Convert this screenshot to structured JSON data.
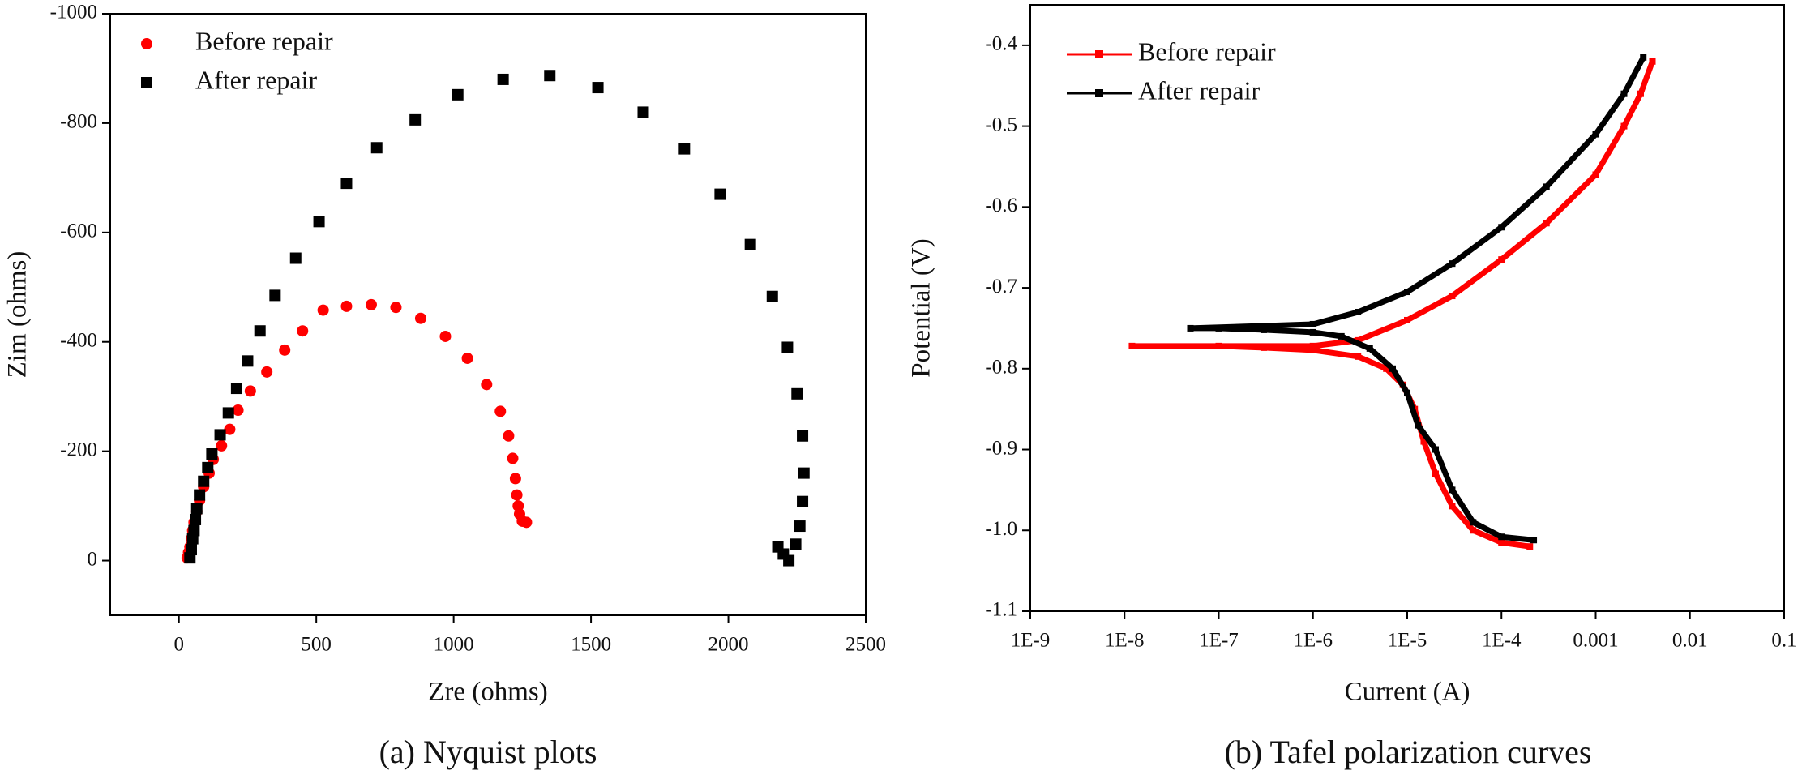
{
  "chart_data": [
    {
      "type": "scatter",
      "caption": "(a) Nyquist plots",
      "xlabel": "Zre (ohms)",
      "ylabel": "Zim (ohms)",
      "xlim": [
        -250,
        2500
      ],
      "xticks": [
        0,
        500,
        1000,
        1500,
        2000,
        2500
      ],
      "ylim": [
        100,
        -1000
      ],
      "yticks": [
        0,
        -200,
        -400,
        -600,
        -800,
        -1000
      ],
      "legend": "upper left",
      "series": [
        {
          "name": "Before repair",
          "color": "#ff0000",
          "marker": "circle",
          "x": [
            30,
            35,
            40,
            45,
            50,
            55,
            65,
            75,
            90,
            110,
            125,
            155,
            185,
            215,
            260,
            320,
            385,
            450,
            525,
            610,
            700,
            790,
            880,
            970,
            1050,
            1120,
            1170,
            1200,
            1215,
            1225,
            1230,
            1235,
            1240,
            1250,
            1265
          ],
          "values": [
            -5,
            -15,
            -25,
            -40,
            -55,
            -70,
            -90,
            -110,
            -135,
            -160,
            -185,
            -210,
            -240,
            -275,
            -310,
            -345,
            -385,
            -420,
            -458,
            -465,
            -468,
            -463,
            -443,
            -410,
            -370,
            -322,
            -273,
            -228,
            -187,
            -150,
            -120,
            -100,
            -85,
            -72,
            -70
          ]
        },
        {
          "name": "After repair",
          "color": "#000000",
          "marker": "square",
          "x": [
            40,
            45,
            50,
            55,
            60,
            65,
            75,
            90,
            105,
            120,
            150,
            180,
            210,
            250,
            295,
            350,
            425,
            510,
            610,
            720,
            860,
            1015,
            1180,
            1350,
            1525,
            1690,
            1840,
            1970,
            2080,
            2160,
            2215,
            2250,
            2270,
            2275,
            2270,
            2260,
            2245,
            2220,
            2200,
            2180
          ],
          "values": [
            -5,
            -20,
            -40,
            -55,
            -75,
            -95,
            -120,
            -145,
            -170,
            -195,
            -230,
            -270,
            -315,
            -365,
            -420,
            -485,
            -553,
            -620,
            -690,
            -755,
            -806,
            -852,
            -880,
            -887,
            -865,
            -820,
            -753,
            -670,
            -578,
            -483,
            -390,
            -305,
            -228,
            -160,
            -108,
            -63,
            -30,
            0,
            -12,
            -25
          ]
        }
      ]
    },
    {
      "type": "line",
      "caption": "(b) Tafel polarization curves",
      "xlabel": "Current (A)",
      "ylabel": "Potential (V)",
      "xscale": "log",
      "xlim": [
        1e-09,
        0.1
      ],
      "xticks": [
        {
          "value": 1e-09,
          "label": "1E-9"
        },
        {
          "value": 1e-08,
          "label": "1E-8"
        },
        {
          "value": 1e-07,
          "label": "1E-7"
        },
        {
          "value": 1e-06,
          "label": "1E-6"
        },
        {
          "value": 1e-05,
          "label": "1E-5"
        },
        {
          "value": 0.0001,
          "label": "1E-4"
        },
        0.001,
        0.01,
        0.1
      ],
      "ylim": [
        -1.1,
        -0.35
      ],
      "yticks": [
        -0.4,
        -0.5,
        -0.6,
        -0.7,
        -0.8,
        -0.9,
        {
          "value": -1,
          "label": "-1.0"
        },
        -1.1
      ],
      "legend": "upper left",
      "series": [
        {
          "name": "Before repair",
          "color": "#ff0000",
          "x": [
            0.0002,
            0.0001,
            5e-05,
            3e-05,
            2e-05,
            1.5e-05,
            1.2e-05,
            9e-06,
            6e-06,
            3e-06,
            1e-06,
            3e-07,
            1e-07,
            1.2e-08,
            1e-06,
            3e-06,
            1e-05,
            3e-05,
            0.0001,
            0.0003,
            0.001,
            0.002,
            0.003,
            0.004
          ],
          "values": [
            -1.02,
            -1.015,
            -1.0,
            -0.97,
            -0.93,
            -0.89,
            -0.85,
            -0.82,
            -0.8,
            -0.785,
            -0.777,
            -0.774,
            -0.772,
            -0.772,
            -0.772,
            -0.765,
            -0.74,
            -0.71,
            -0.665,
            -0.62,
            -0.56,
            -0.5,
            -0.46,
            -0.42
          ]
        },
        {
          "name": "After repair",
          "color": "#000000",
          "x": [
            0.00022,
            0.0001,
            5e-05,
            3e-05,
            2e-05,
            1.3e-05,
            1e-05,
            7e-06,
            4e-06,
            2e-06,
            1e-06,
            3e-07,
            1e-07,
            5e-08,
            1e-06,
            3e-06,
            1e-05,
            3e-05,
            0.0001,
            0.0003,
            0.001,
            0.002,
            0.0032
          ],
          "values": [
            -1.012,
            -1.008,
            -0.99,
            -0.95,
            -0.9,
            -0.87,
            -0.83,
            -0.8,
            -0.775,
            -0.76,
            -0.755,
            -0.752,
            -0.75,
            -0.75,
            -0.745,
            -0.73,
            -0.705,
            -0.67,
            -0.625,
            -0.575,
            -0.51,
            -0.46,
            -0.415
          ]
        }
      ]
    }
  ]
}
